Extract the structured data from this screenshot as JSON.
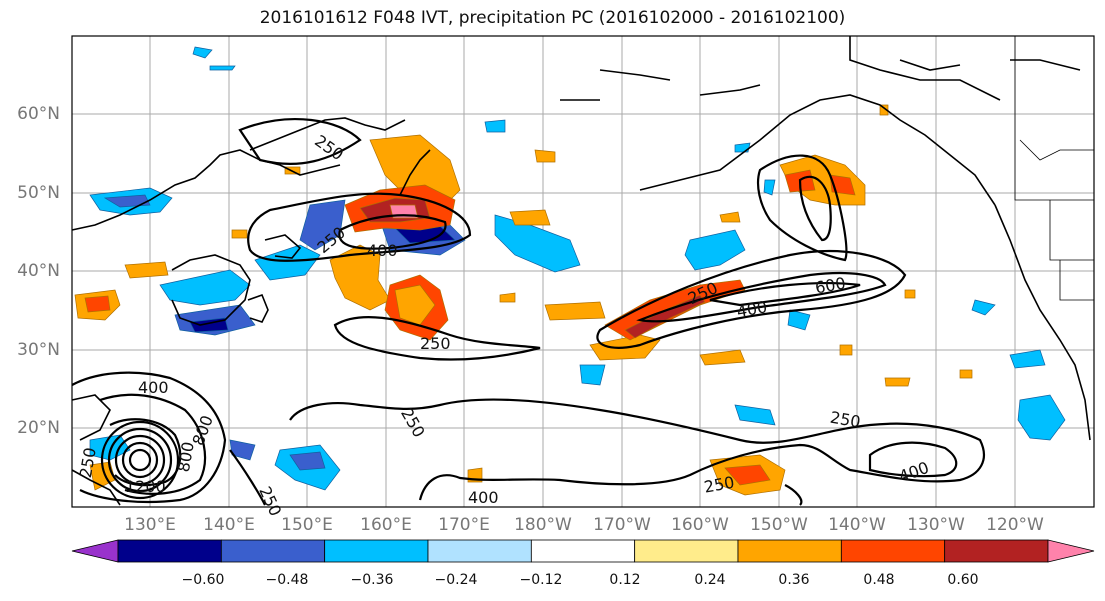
{
  "title": "2016101612 F048 IVT, precipitation PC (2016102000 - 2016102100)",
  "lat_labels": [
    "60°N",
    "50°N",
    "40°N",
    "30°N",
    "20°N"
  ],
  "lon_labels": [
    "130°E",
    "140°E",
    "150°E",
    "160°E",
    "170°E",
    "180°W",
    "170°W",
    "160°W",
    "150°W",
    "140°W",
    "130°W",
    "120°W"
  ],
  "colorbar": {
    "colors": [
      "#9932cc",
      "#00008b",
      "#3a5fcd",
      "#00bfff",
      "#b0e2ff",
      "#ffffff",
      "#ffec8b",
      "#ffa500",
      "#ff4500",
      "#b22222",
      "#ff82ab"
    ],
    "ticks": [
      "−0.60",
      "−0.48",
      "−0.36",
      "−0.24",
      "−0.12",
      "0.12",
      "0.24",
      "0.36",
      "0.48",
      "0.60"
    ]
  },
  "contour_labels": {
    "c250_ne": "250",
    "c250_japan": "250",
    "c400_japan": "400",
    "c250_mid": "250",
    "c400_wpac": "400",
    "c250_wpac": "250",
    "c400_trop": "400",
    "c800_ty": "800",
    "c800_ty2": "800",
    "c1200_ty": "1200",
    "c250_ty": "250",
    "c250_ar": "250",
    "c400_ar": "400",
    "c600_ar": "600",
    "c250_se": "250",
    "c250_south": "250",
    "c400_se": "400"
  }
}
